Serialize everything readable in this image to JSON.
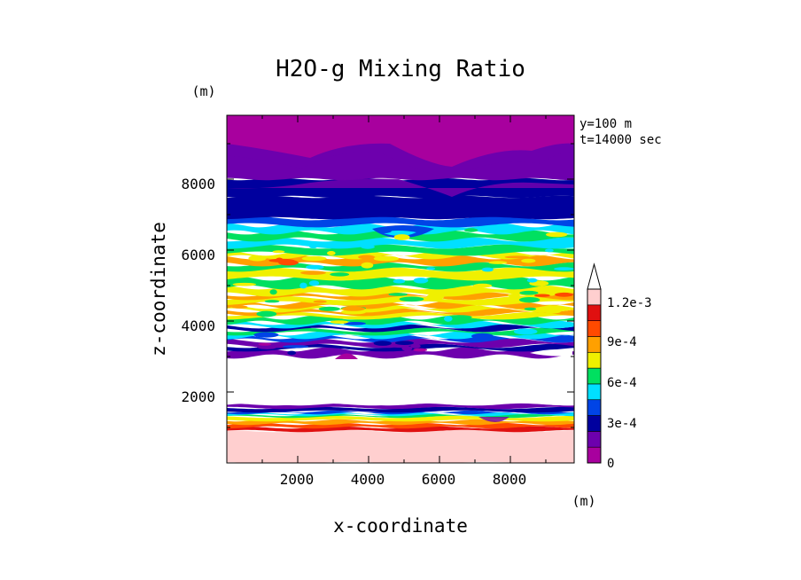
{
  "chart_data": {
    "type": "heatmap",
    "title": "H2O-g Mixing Ratio",
    "xlabel": "x-coordinate",
    "ylabel": "z-coordinate",
    "x_unit": "(m)",
    "y_unit": "(m)",
    "xlim": [
      0,
      9800
    ],
    "ylim": [
      0,
      9800
    ],
    "x_ticks": [
      2000,
      4000,
      6000,
      8000
    ],
    "x_tick_labels": [
      "2000",
      "4000",
      "6000",
      "8000"
    ],
    "y_ticks": [
      2000,
      4000,
      6000,
      8000
    ],
    "y_tick_labels": [
      "2000",
      "4000",
      "6000",
      "8000"
    ],
    "annotations": [
      "y=100 m",
      "t=14000 sec"
    ],
    "colorbar": {
      "levels": [
        0,
        0.00015,
        0.0003,
        0.00045,
        0.0006,
        0.00075,
        0.0009,
        0.00105,
        0.0012
      ],
      "colors": [
        "#a8009e",
        "#6d00ad",
        "#00009e",
        "#0044e6",
        "#00e0ff",
        "#00e060",
        "#f0f000",
        "#ffa000",
        "#ff4a00",
        "#e01010",
        "#ffcfcf"
      ],
      "tick_labels": [
        "0",
        "3e-4",
        "6e-4",
        "9e-4",
        "1.2e-3"
      ],
      "tick_values": [
        0,
        0.0003,
        0.0006,
        0.0009,
        0.0012
      ],
      "extend": "max"
    },
    "bands": [
      {
        "z_bottom": 0,
        "z_top": 900,
        "level_index": 10
      },
      {
        "z_bottom": 900,
        "z_top": 1000,
        "level_index": 9
      },
      {
        "z_bottom": 1000,
        "z_top": 1100,
        "level_index": 8
      },
      {
        "z_bottom": 1100,
        "z_top": 1200,
        "level_index": 7
      },
      {
        "z_bottom": 1200,
        "z_top": 1300,
        "level_index": 6
      },
      {
        "z_bottom": 1300,
        "z_top": 1350,
        "level_index": 5
      },
      {
        "z_bottom": 1350,
        "z_top": 1400,
        "level_index": 4
      },
      {
        "z_bottom": 1400,
        "z_top": 1450,
        "level_index": 3
      },
      {
        "z_bottom": 1450,
        "z_top": 1550,
        "level_index": 2
      },
      {
        "z_bottom": 1550,
        "z_top": 1650,
        "level_index": 1
      },
      {
        "z_bottom": 1650,
        "z_top": 3000,
        "level_index": -1
      },
      {
        "z_bottom": 3000,
        "z_top": 3200,
        "level_index": 1
      },
      {
        "z_bottom": 3200,
        "z_top": 3300,
        "level_index": 2
      },
      {
        "z_bottom": 3300,
        "z_top": 3450,
        "level_index": 1
      },
      {
        "z_bottom": 3450,
        "z_top": 3550,
        "level_index": 3
      },
      {
        "z_bottom": 3550,
        "z_top": 3650,
        "level_index": 4
      },
      {
        "z_bottom": 3650,
        "z_top": 3750,
        "level_index": 5
      },
      {
        "z_bottom": 3750,
        "z_top": 3850,
        "level_index": 2
      },
      {
        "z_bottom": 3850,
        "z_top": 3950,
        "level_index": 4
      },
      {
        "z_bottom": 3950,
        "z_top": 4100,
        "level_index": 5
      },
      {
        "z_bottom": 4100,
        "z_top": 4200,
        "level_index": 6
      },
      {
        "z_bottom": 4200,
        "z_top": 4300,
        "level_index": 7
      },
      {
        "z_bottom": 4300,
        "z_top": 4400,
        "level_index": 6
      },
      {
        "z_bottom": 4400,
        "z_top": 4500,
        "level_index": 7
      },
      {
        "z_bottom": 4500,
        "z_top": 4650,
        "level_index": 6
      },
      {
        "z_bottom": 4650,
        "z_top": 4750,
        "level_index": 7
      },
      {
        "z_bottom": 4750,
        "z_top": 4950,
        "level_index": 6
      },
      {
        "z_bottom": 4950,
        "z_top": 5200,
        "level_index": 5
      },
      {
        "z_bottom": 5200,
        "z_top": 5450,
        "level_index": 6
      },
      {
        "z_bottom": 5450,
        "z_top": 5600,
        "level_index": 5
      },
      {
        "z_bottom": 5600,
        "z_top": 5800,
        "level_index": 7
      },
      {
        "z_bottom": 5800,
        "z_top": 5900,
        "level_index": 6
      },
      {
        "z_bottom": 5900,
        "z_top": 6100,
        "level_index": 5
      },
      {
        "z_bottom": 6100,
        "z_top": 6300,
        "level_index": 4
      },
      {
        "z_bottom": 6300,
        "z_top": 6500,
        "level_index": 5
      },
      {
        "z_bottom": 6500,
        "z_top": 6700,
        "level_index": 4
      },
      {
        "z_bottom": 6700,
        "z_top": 6900,
        "level_index": 3
      },
      {
        "z_bottom": 6900,
        "z_top": 7500,
        "level_index": 2
      },
      {
        "z_bottom": 7500,
        "z_top": 8000,
        "level_index": 2
      },
      {
        "z_bottom": 8000,
        "z_top": 8800,
        "level_index": 1
      },
      {
        "z_bottom": 8800,
        "z_top": 9800,
        "level_index": 0
      }
    ]
  }
}
